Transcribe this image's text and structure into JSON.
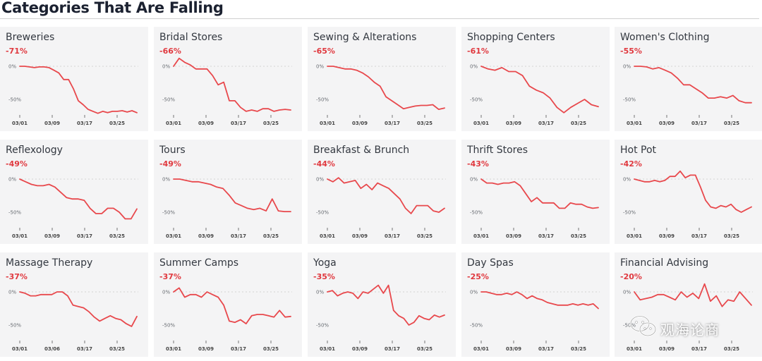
{
  "page": {
    "title": "Categories That Are Falling"
  },
  "colors": {
    "line": "#e8484c",
    "change": "#e0393f",
    "card_bg": "#f4f4f5"
  },
  "watermark": {
    "icon": "wechat-icon",
    "text": "观海论商"
  },
  "chart_data": [
    {
      "type": "line",
      "title": "Breweries",
      "change": "-71%",
      "y_ticks": [
        "0%",
        "-50%"
      ],
      "x_ticks": [
        "03/01",
        "03/09",
        "03/17",
        "03/25"
      ],
      "values": [
        0,
        0,
        -1,
        -2,
        -1,
        -1,
        -2,
        -6,
        -10,
        -20,
        -20,
        -34,
        -52,
        -58,
        -65,
        -68,
        -71,
        -68,
        -70,
        -68,
        -68,
        -67,
        -69,
        -67,
        -70
      ]
    },
    {
      "type": "line",
      "title": "Bridal Stores",
      "change": "-66%",
      "y_ticks": [
        "0%",
        "-50%"
      ],
      "x_ticks": [
        "03/01",
        "03/09",
        "03/17",
        "03/25"
      ],
      "values": [
        0,
        12,
        6,
        2,
        -4,
        -4,
        -4,
        -14,
        -28,
        -24,
        -52,
        -52,
        -62,
        -68,
        -66,
        -68,
        -64,
        -64,
        -68,
        -66,
        -65,
        -66
      ]
    },
    {
      "type": "line",
      "title": "Sewing & Alterations",
      "change": "-65%",
      "y_ticks": [
        "0%",
        "-50%"
      ],
      "x_ticks": [
        "03/01",
        "03/09",
        "03/17",
        "03/25"
      ],
      "values": [
        0,
        0,
        -2,
        -4,
        -4,
        -6,
        -10,
        -16,
        -24,
        -30,
        -46,
        -52,
        -58,
        -64,
        -62,
        -60,
        -59,
        -59,
        -58,
        -65,
        -63
      ]
    },
    {
      "type": "line",
      "title": "Shopping Centers",
      "change": "-61%",
      "y_ticks": [
        "0%",
        "-50%"
      ],
      "x_ticks": [
        "03/01",
        "03/09",
        "03/17",
        "03/25"
      ],
      "values": [
        0,
        -4,
        -6,
        -2,
        -8,
        -8,
        -14,
        -30,
        -36,
        -40,
        -48,
        -62,
        -70,
        -62,
        -56,
        -50,
        -58,
        -61
      ]
    },
    {
      "type": "line",
      "title": "Women's Clothing",
      "change": "-55%",
      "y_ticks": [
        "0%",
        "-50%"
      ],
      "x_ticks": [
        "03/01",
        "03/09",
        "03/17",
        "03/25"
      ],
      "values": [
        0,
        0,
        -1,
        -4,
        -2,
        -6,
        -10,
        -18,
        -28,
        -28,
        -34,
        -40,
        -48,
        -48,
        -46,
        -48,
        -44,
        -52,
        -55,
        -55
      ]
    },
    {
      "type": "line",
      "title": "Reflexology",
      "change": "-49%",
      "y_ticks": [
        "0%",
        "-50%"
      ],
      "x_ticks": [
        "03/01",
        "03/09",
        "03/17",
        "03/25"
      ],
      "values": [
        0,
        -4,
        -8,
        -10,
        -10,
        -8,
        -12,
        -20,
        -28,
        -30,
        -30,
        -32,
        -44,
        -52,
        -52,
        -44,
        -44,
        -50,
        -60,
        -60,
        -45
      ]
    },
    {
      "type": "line",
      "title": "Tours",
      "change": "-49%",
      "y_ticks": [
        "0%",
        "-50%"
      ],
      "x_ticks": [
        "03/01",
        "03/09",
        "03/17",
        "03/25"
      ],
      "values": [
        0,
        0,
        -2,
        -4,
        -4,
        -6,
        -8,
        -12,
        -14,
        -24,
        -36,
        -40,
        -44,
        -46,
        -44,
        -48,
        -30,
        -48,
        -49,
        -49
      ]
    },
    {
      "type": "line",
      "title": "Breakfast & Brunch",
      "change": "-44%",
      "y_ticks": [
        "0%",
        "-50%"
      ],
      "x_ticks": [
        "03/01",
        "03/09",
        "03/17",
        "03/25"
      ],
      "values": [
        0,
        -4,
        2,
        -6,
        -4,
        -2,
        -14,
        -8,
        -16,
        -6,
        -10,
        -14,
        -22,
        -30,
        -44,
        -52,
        -40,
        -40,
        -40,
        -48,
        -50,
        -44
      ]
    },
    {
      "type": "line",
      "title": "Thrift Stores",
      "change": "-43%",
      "y_ticks": [
        "0%",
        "-50%"
      ],
      "x_ticks": [
        "03/01",
        "03/09",
        "03/17",
        "03/25"
      ],
      "values": [
        0,
        -6,
        -6,
        -8,
        -6,
        -6,
        -4,
        -10,
        -22,
        -34,
        -28,
        -36,
        -36,
        -36,
        -44,
        -44,
        -36,
        -38,
        -38,
        -42,
        -44,
        -43
      ]
    },
    {
      "type": "line",
      "title": "Hot Pot",
      "change": "-42%",
      "y_ticks": [
        "0%",
        "-50%"
      ],
      "x_ticks": [
        "03/01",
        "03/09",
        "03/17",
        "03/25"
      ],
      "values": [
        0,
        -2,
        -4,
        -4,
        -2,
        -4,
        -2,
        4,
        4,
        12,
        2,
        6,
        6,
        -12,
        -32,
        -42,
        -44,
        -40,
        -42,
        -38,
        -46,
        -50,
        -46,
        -42
      ]
    },
    {
      "type": "line",
      "title": "Massage Therapy",
      "change": "-37%",
      "y_ticks": [
        "0%",
        "-50%"
      ],
      "x_ticks": [
        "03/01",
        "03/06",
        "03/17",
        "03/25"
      ],
      "values": [
        0,
        -2,
        -6,
        -6,
        -4,
        -4,
        -4,
        0,
        0,
        -6,
        -20,
        -22,
        -24,
        -30,
        -38,
        -44,
        -40,
        -36,
        -40,
        -42,
        -48,
        -52,
        -37
      ]
    },
    {
      "type": "line",
      "title": "Summer Camps",
      "change": "-37%",
      "y_ticks": [
        "0%",
        "-50%"
      ],
      "x_ticks": [
        "03/01",
        "03/09",
        "03/17",
        "03/25"
      ],
      "values": [
        0,
        6,
        -8,
        -4,
        -4,
        -8,
        0,
        -4,
        -8,
        -20,
        -44,
        -46,
        -42,
        -48,
        -36,
        -34,
        -34,
        -36,
        -38,
        -28,
        -38,
        -37
      ]
    },
    {
      "type": "line",
      "title": "Yoga",
      "change": "-35%",
      "y_ticks": [
        "0%",
        "-50%"
      ],
      "x_ticks": [
        "03/01",
        "03/09",
        "03/17",
        "03/25"
      ],
      "values": [
        0,
        2,
        -6,
        -2,
        0,
        -2,
        -10,
        0,
        -2,
        4,
        10,
        -2,
        10,
        -28,
        -36,
        -40,
        -50,
        -46,
        -36,
        -40,
        -42,
        -35,
        -38,
        -35
      ]
    },
    {
      "type": "line",
      "title": "Day Spas",
      "change": "-25%",
      "y_ticks": [
        "0%",
        "-50%"
      ],
      "x_ticks": [
        "03/01",
        "03/09",
        "03/17",
        "03/25"
      ],
      "values": [
        0,
        0,
        -2,
        -4,
        -4,
        -2,
        -4,
        0,
        -4,
        -10,
        -6,
        -10,
        -12,
        -16,
        -18,
        -20,
        -20,
        -20,
        -18,
        -20,
        -18,
        -20,
        -18,
        -25
      ]
    },
    {
      "type": "line",
      "title": "Financial Advising",
      "change": "-20%",
      "y_ticks": [
        "0%",
        "-50%"
      ],
      "x_ticks": [
        "03/01",
        "03/09",
        "03/17",
        "03/25"
      ],
      "values": [
        0,
        -12,
        -10,
        -8,
        -4,
        -4,
        -8,
        -12,
        0,
        -8,
        -2,
        -10,
        12,
        -14,
        -6,
        -22,
        -12,
        -14,
        0,
        -10,
        -20
      ]
    }
  ]
}
